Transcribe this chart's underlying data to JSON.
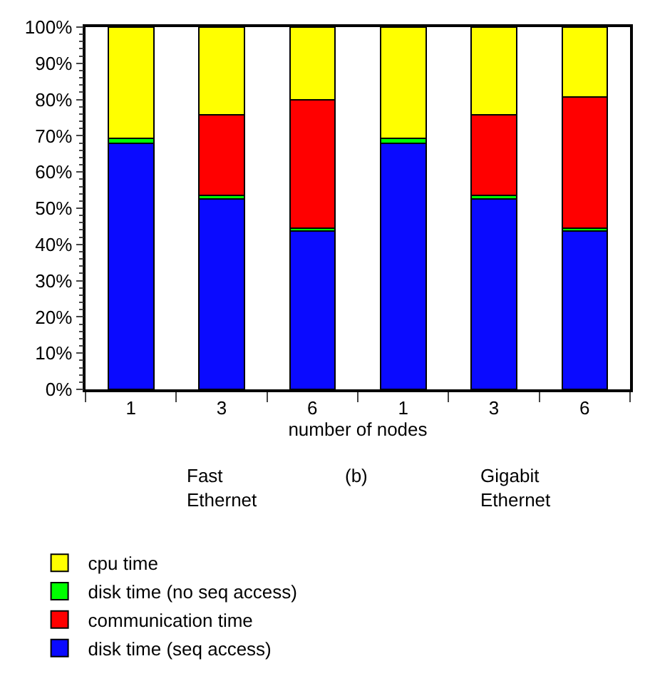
{
  "chart_data": {
    "type": "bar",
    "stacked": true,
    "xlabel": "number of nodes",
    "categories": [
      "1",
      "3",
      "6",
      "1",
      "3",
      "6"
    ],
    "series": [
      {
        "name": "disk time (seq access)",
        "color": "#0a0aff",
        "values": [
          68,
          52.5,
          43.7,
          68,
          52.5,
          43.7
        ]
      },
      {
        "name": "disk time (no seq access)",
        "color": "#00ff00",
        "values": [
          1.3,
          1,
          0.7,
          1.3,
          1,
          0.8
        ]
      },
      {
        "name": "communication time",
        "color": "#ff0000",
        "values": [
          0,
          22.3,
          35.6,
          0,
          22.3,
          36.3
        ]
      },
      {
        "name": "cpu time",
        "color": "#ffff00",
        "values": [
          30.7,
          24.2,
          20,
          30.7,
          24.2,
          19.2
        ]
      }
    ],
    "ylim": [
      0,
      100
    ],
    "yticks": [
      {
        "value": 0,
        "label": "0%"
      },
      {
        "value": 10,
        "label": "10%"
      },
      {
        "value": 20,
        "label": "20%"
      },
      {
        "value": 30,
        "label": "30%"
      },
      {
        "value": 40,
        "label": "40%"
      },
      {
        "value": 50,
        "label": "50%"
      },
      {
        "value": 60,
        "label": "60%"
      },
      {
        "value": 70,
        "label": "70%"
      },
      {
        "value": 80,
        "label": "80%"
      },
      {
        "value": 90,
        "label": "90%"
      },
      {
        "value": 100,
        "label": "100%"
      }
    ],
    "annotations": [
      "Fast Ethernet",
      "(b)",
      "Gigabit Ethernet"
    ],
    "legend": "bottom"
  }
}
